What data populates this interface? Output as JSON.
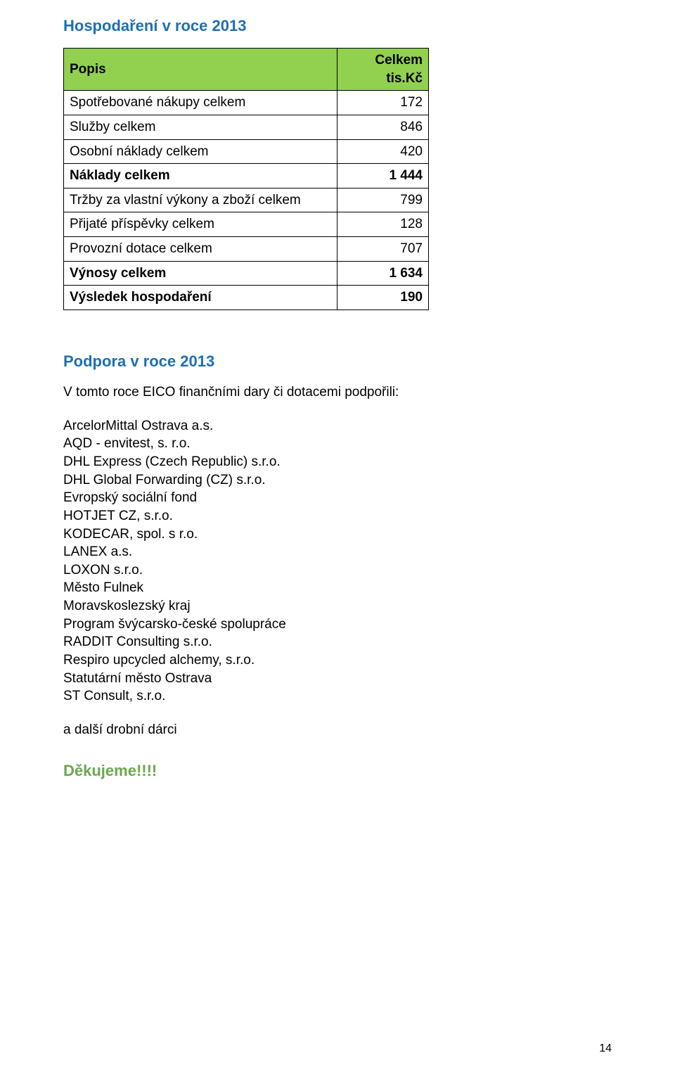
{
  "heading_finance": "Hospodaření v roce 2013",
  "table": {
    "header_desc": "Popis",
    "header_amount": "Celkem tis.Kč",
    "rows": [
      {
        "label": "Spotřebované nákupy celkem",
        "value": "172",
        "bold": false
      },
      {
        "label": "Služby celkem",
        "value": "846",
        "bold": false
      },
      {
        "label": "Osobní náklady celkem",
        "value": "420",
        "bold": false
      },
      {
        "label": "Náklady celkem",
        "value": "1 444",
        "bold": true
      },
      {
        "label": "Tržby za vlastní výkony a zboží celkem",
        "value": "799",
        "bold": false
      },
      {
        "label": "Přijaté příspěvky celkem",
        "value": "128",
        "bold": false
      },
      {
        "label": "Provozní dotace celkem",
        "value": "707",
        "bold": false
      },
      {
        "label": "Výnosy celkem",
        "value": "1 634",
        "bold": true
      },
      {
        "label": "Výsledek hospodaření",
        "value": "190",
        "bold": true
      }
    ]
  },
  "heading_support": "Podpora v roce 2013",
  "support_intro": "V tomto roce EICO finančními dary či dotacemi podpořili:",
  "supporters": [
    "ArcelorMittal Ostrava a.s.",
    "AQD - envitest, s. r.o.",
    "DHL Express (Czech Republic) s.r.o.",
    "DHL Global Forwarding (CZ) s.r.o.",
    "Evropský sociální fond",
    "HOTJET CZ, s.r.o.",
    "KODECAR, spol. s r.o.",
    "LANEX a.s.",
    "LOXON s.r.o.",
    "Město Fulnek",
    "Moravskoslezský kraj",
    "Program švýcarsko-české spolupráce",
    "RADDIT Consulting s.r.o.",
    "Respiro upcycled alchemy,  s.r.o.",
    "Statutární město Ostrava",
    "ST Consult,  s.r.o."
  ],
  "other_donors": "a další drobní dárci",
  "thanks": "Děkujeme!!!!",
  "page_number": "14",
  "colors": {
    "heading_green": "#6aa84f",
    "heading_blue": "#1f6fb2",
    "table_header_bg": "#92d050",
    "border": "#000000",
    "text": "#000000",
    "background": "#ffffff"
  }
}
